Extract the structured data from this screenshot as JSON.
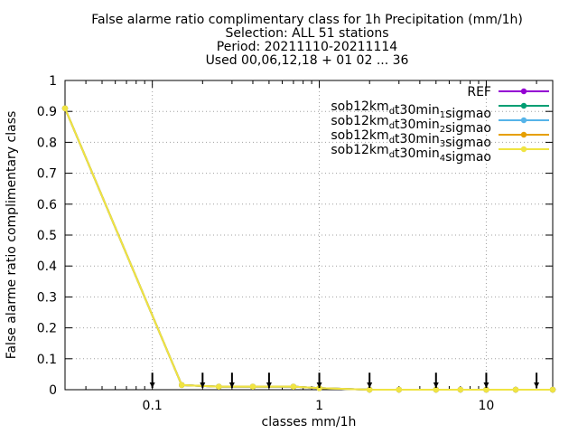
{
  "chart_data": {
    "type": "line",
    "title_lines": [
      "False alarme ratio complimentary class  for 1h Precipitation (mm/1h)",
      "Selection: ALL     51 stations",
      "Period: 20211110-20211114",
      "Used 00,06,12,18 + 01 02 ... 36"
    ],
    "xlabel": "classes mm/1h",
    "ylabel": "False alarme ratio complimentary class",
    "xscale": "log",
    "xlim": [
      0.03,
      25
    ],
    "ylim": [
      0,
      1
    ],
    "x_ticks": [
      {
        "value": 0.1,
        "label": "0.1"
      },
      {
        "value": 1,
        "label": "1"
      },
      {
        "value": 10,
        "label": "10"
      }
    ],
    "y_ticks": [
      {
        "value": 0,
        "label": "0"
      },
      {
        "value": 0.1,
        "label": "0.1"
      },
      {
        "value": 0.2,
        "label": "0.2"
      },
      {
        "value": 0.3,
        "label": "0.3"
      },
      {
        "value": 0.4,
        "label": "0.4"
      },
      {
        "value": 0.5,
        "label": "0.5"
      },
      {
        "value": 0.6,
        "label": "0.6"
      },
      {
        "value": 0.7,
        "label": "0.7"
      },
      {
        "value": 0.8,
        "label": "0.8"
      },
      {
        "value": 0.9,
        "label": "0.9"
      },
      {
        "value": 1,
        "label": "1"
      }
    ],
    "grid": true,
    "legend_position": "top-right",
    "series": [
      {
        "name": "REF",
        "legend_parts": [
          [
            "REF",
            ""
          ]
        ],
        "color": "#9400d3",
        "x": [
          0.03,
          0.15,
          0.25,
          0.4,
          0.7,
          1,
          2,
          3,
          5,
          7,
          10,
          15,
          25
        ],
        "y": [
          0.91,
          0.015,
          0.01,
          0.01,
          0.01,
          0.005,
          0,
          0,
          0,
          0,
          0,
          0,
          0
        ]
      },
      {
        "name": "sob12km_d t30min_1 sigmao",
        "legend_parts": [
          [
            "sob12km",
            "d"
          ],
          [
            "t30min",
            "1"
          ],
          [
            "sigmao",
            ""
          ]
        ],
        "color": "#009e73",
        "x": [
          0.03,
          0.15,
          0.25,
          0.4,
          0.7,
          1,
          2,
          3,
          5,
          7,
          10,
          15,
          25
        ],
        "y": [
          0.91,
          0.015,
          0.01,
          0.01,
          0.01,
          0.005,
          0,
          0,
          0,
          0,
          0,
          0,
          0
        ]
      },
      {
        "name": "sob12km_d t30min_2 sigmao",
        "legend_parts": [
          [
            "sob12km",
            "d"
          ],
          [
            "t30min",
            "2"
          ],
          [
            "sigmao",
            ""
          ]
        ],
        "color": "#56b4e9",
        "x": [
          0.03,
          0.15,
          0.25,
          0.4,
          0.7,
          1,
          2,
          3,
          5,
          7,
          10,
          15,
          25
        ],
        "y": [
          0.91,
          0.015,
          0.01,
          0.01,
          0.01,
          0.005,
          0,
          0,
          0,
          0,
          0,
          0,
          0
        ]
      },
      {
        "name": "sob12km_d t30min_3 sigmao",
        "legend_parts": [
          [
            "sob12km",
            "d"
          ],
          [
            "t30min",
            "3"
          ],
          [
            "sigmao",
            ""
          ]
        ],
        "color": "#e69f00",
        "x": [
          0.03,
          0.15,
          0.25,
          0.4,
          0.7,
          1,
          2,
          3,
          5,
          7,
          10,
          15,
          25
        ],
        "y": [
          0.91,
          0.015,
          0.01,
          0.01,
          0.01,
          0.005,
          0,
          0,
          0,
          0,
          0,
          0,
          0
        ]
      },
      {
        "name": "sob12km_d t30min_4 sigmao",
        "legend_parts": [
          [
            "sob12km",
            "d"
          ],
          [
            "t30min",
            "4"
          ],
          [
            "sigmao",
            ""
          ]
        ],
        "color": "#f0e442",
        "x": [
          0.03,
          0.15,
          0.25,
          0.4,
          0.7,
          1,
          2,
          3,
          5,
          7,
          10,
          15,
          25
        ],
        "y": [
          0.91,
          0.015,
          0.01,
          0.01,
          0.01,
          0.005,
          0,
          0,
          0,
          0,
          0,
          0,
          0
        ]
      }
    ],
    "class_markers": {
      "style": "black-arrow-down",
      "x": [
        0.1,
        0.2,
        0.3,
        0.5,
        1,
        2,
        5,
        10,
        20
      ],
      "y_top": 0.055,
      "y_bottom": 0
    }
  }
}
